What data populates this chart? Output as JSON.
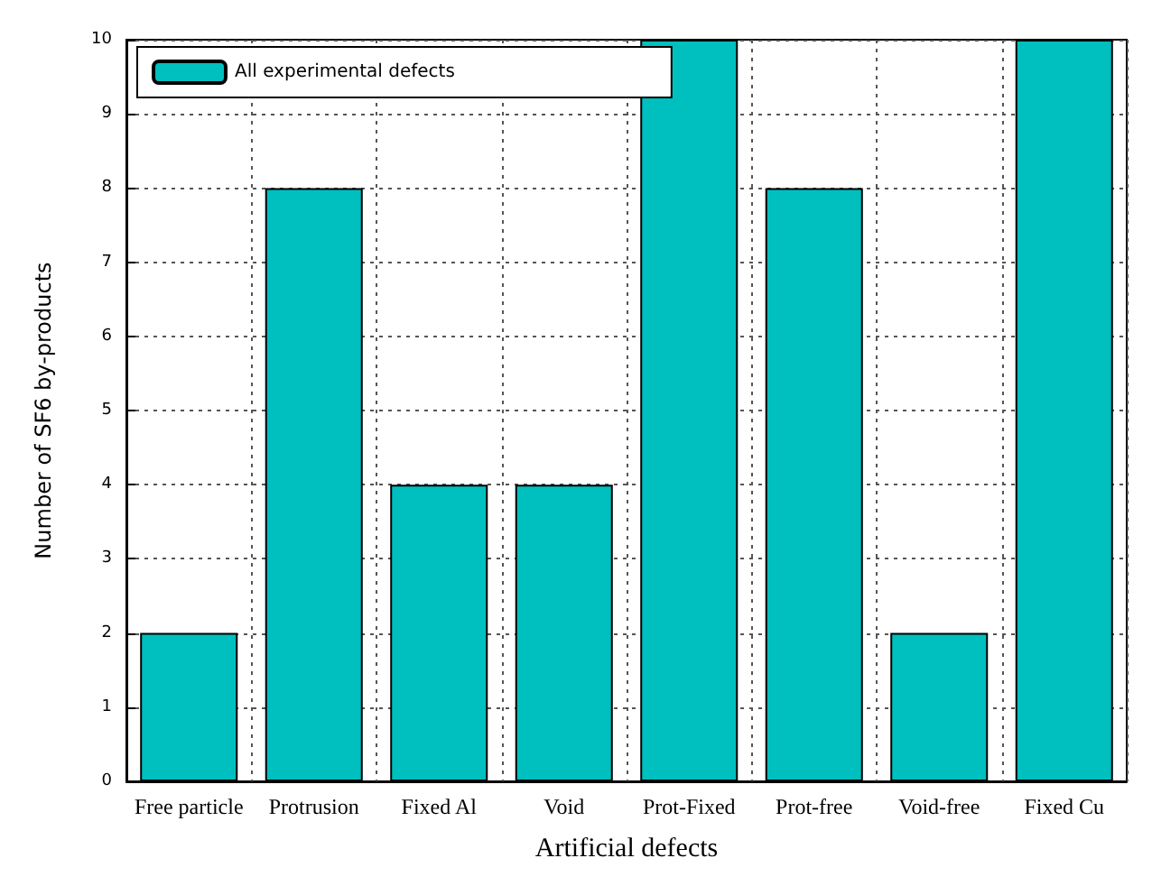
{
  "chart_data": {
    "type": "bar",
    "xlabel": "Artificial defects",
    "ylabel": "Number of SF6 by-products",
    "categories": [
      "Free particle",
      "Protrusion",
      "Fixed Al",
      "Void",
      "Prot-Fixed",
      "Prot-free",
      "Void-free",
      "Fixed Cu"
    ],
    "series": [
      {
        "name": "All experimental defects",
        "color": "#00bfbf",
        "values": [
          2,
          8,
          4,
          4,
          10,
          8,
          2,
          10
        ]
      }
    ],
    "ylim": [
      0,
      10
    ],
    "yticks": [
      0,
      1,
      2,
      3,
      4,
      5,
      6,
      7,
      8,
      9,
      10
    ],
    "grid": true,
    "legend": "top left"
  }
}
